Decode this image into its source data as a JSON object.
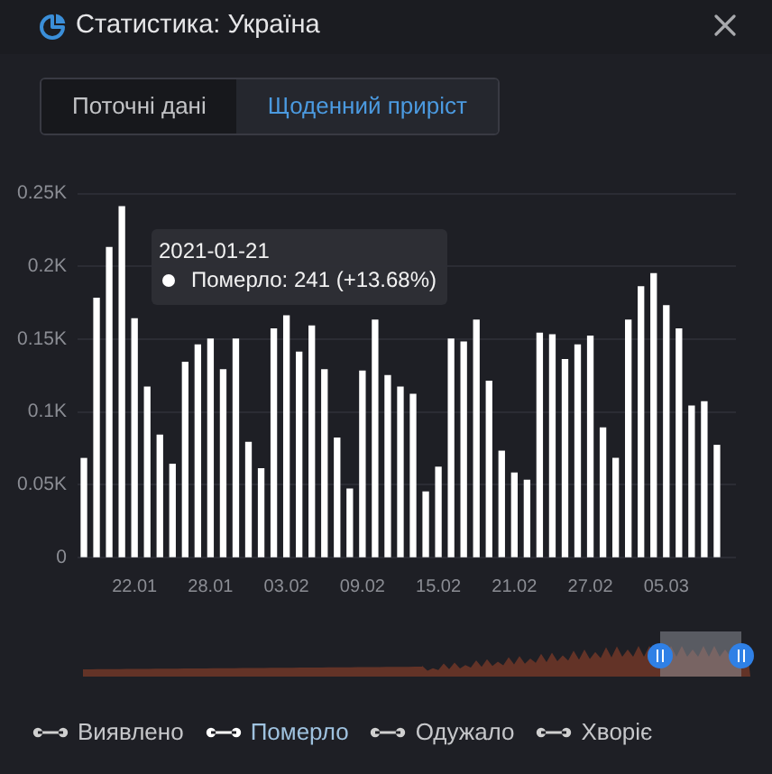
{
  "chart_data": {
    "type": "bar",
    "title": "Статистика: Україна",
    "annotations": [
      "Поточні дані",
      "Щоденний приріст",
      "2021-01-21\nПомерло: 241 (+13.68%)"
    ],
    "categories": [
      null,
      null,
      null,
      null,
      "22.01",
      null,
      null,
      null,
      null,
      null,
      "28.01",
      null,
      null,
      null,
      null,
      null,
      "03.02",
      null,
      null,
      null,
      null,
      null,
      "09.02",
      null,
      null,
      null,
      null,
      null,
      "15.02",
      null,
      null,
      null,
      null,
      null,
      "21.02",
      null,
      null,
      null,
      null,
      null,
      "27.02",
      null,
      null,
      null,
      null,
      null,
      "05.03",
      null,
      null,
      null,
      null,
      null
    ],
    "series": [
      {
        "name": "Виявлено",
        "color": "#d0d0d0",
        "values": [
          null,
          null,
          null,
          null,
          null,
          null,
          null,
          null,
          null,
          null,
          null,
          null,
          null,
          null,
          null,
          null,
          null,
          null,
          null,
          null,
          null,
          null,
          null,
          null,
          null,
          null,
          null,
          null,
          null,
          null,
          null,
          null,
          null,
          null,
          null,
          null,
          null,
          null,
          null,
          null,
          null,
          null,
          null,
          null,
          null,
          null,
          null,
          null,
          null,
          null,
          null,
          null
        ]
      },
      {
        "name": "Померло",
        "color": "#ffffff",
        "values": [
          68,
          178,
          213,
          241,
          164,
          117,
          84,
          64,
          134,
          146,
          150,
          129,
          150,
          79,
          61,
          157,
          166,
          141,
          159,
          129,
          82,
          47,
          128,
          163,
          125,
          117,
          112,
          45,
          62,
          150,
          148,
          163,
          121,
          73,
          58,
          53,
          154,
          153,
          136,
          146,
          152,
          89,
          68,
          163,
          186,
          195,
          173,
          157,
          104,
          107,
          77,
          null
        ]
      },
      {
        "name": "Одужало",
        "color": "#d0d0d0",
        "values": [
          null,
          null,
          null,
          null,
          null,
          null,
          null,
          null,
          null,
          null,
          null,
          null,
          null,
          null,
          null,
          null,
          null,
          null,
          null,
          null,
          null,
          null,
          null,
          null,
          null,
          null,
          null,
          null,
          null,
          null,
          null,
          null,
          null,
          null,
          null,
          null,
          null,
          null,
          null,
          null,
          null,
          null,
          null,
          null,
          null,
          null,
          null,
          null,
          null,
          null,
          null,
          null
        ]
      },
      {
        "name": "Хворіє",
        "color": "#d0d0d0",
        "values": [
          null,
          null,
          null,
          null,
          null,
          null,
          null,
          null,
          null,
          null,
          null,
          null,
          null,
          null,
          null,
          null,
          null,
          null,
          null,
          null,
          null,
          null,
          null,
          null,
          null,
          null,
          null,
          null,
          null,
          null,
          null,
          null,
          null,
          null,
          null,
          null,
          null,
          null,
          null,
          null,
          null,
          null,
          null,
          null,
          null,
          null,
          null,
          null,
          null,
          null,
          null,
          null
        ]
      }
    ],
    "ylim": [
      0,
      250
    ],
    "yticks": [
      0,
      {
        "value": 50,
        "label": "0.05K"
      },
      {
        "value": 100,
        "label": "0.1K"
      },
      {
        "value": 150,
        "label": "0.15K"
      },
      {
        "value": 200,
        "label": "0.2K"
      },
      {
        "value": 250,
        "label": "0.25K"
      }
    ],
    "grid": "y",
    "legend": "bottom"
  }
}
